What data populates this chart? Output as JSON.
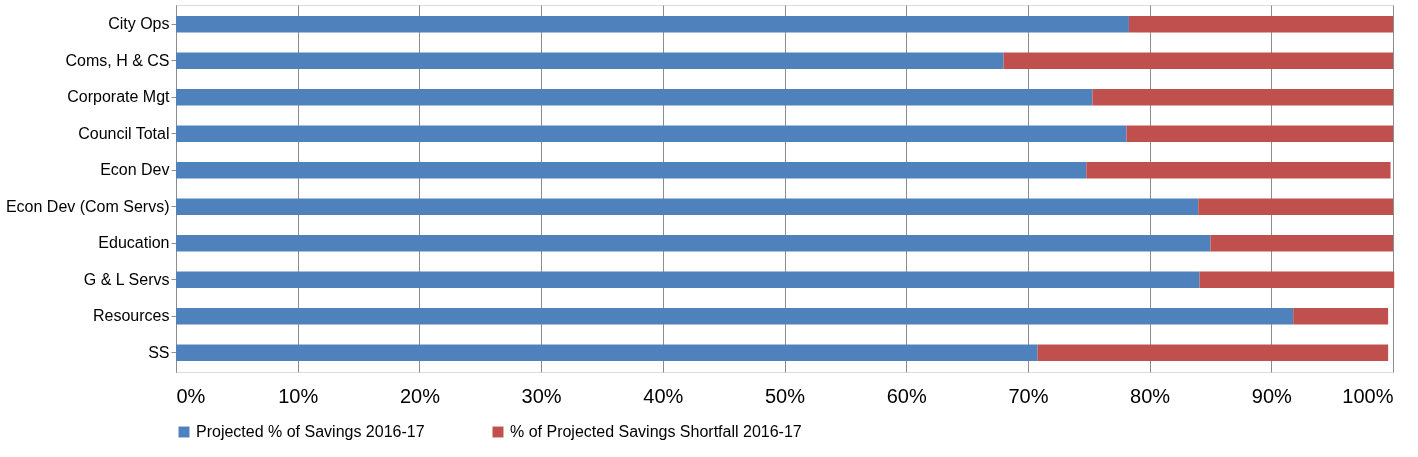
{
  "chart_data": {
    "type": "bar",
    "orientation": "horizontal",
    "stacked": true,
    "categories": [
      "City Ops",
      "Coms, H & CS",
      "Corporate Mgt",
      "Council Total",
      "Econ Dev",
      "Econ Dev (Com Servs)",
      "Education",
      "G & L Servs",
      "Resources",
      "SS"
    ],
    "series": [
      {
        "name": "Projected % of Savings  2016-17",
        "color": "#4f81bd",
        "values": [
          78.3,
          68.0,
          75.3,
          78.1,
          74.8,
          84.0,
          85.0,
          84.1,
          91.8,
          70.8
        ]
      },
      {
        "name": "% of Projected Savings Shortfall 2016-17",
        "color": "#c0504d",
        "values": [
          21.7,
          32.0,
          24.7,
          21.9,
          25.0,
          16.0,
          15.0,
          16.0,
          7.8,
          28.8
        ]
      }
    ],
    "xlim": [
      0,
      100
    ],
    "xticks": [
      {
        "value": 0,
        "label": "0%"
      },
      {
        "value": 10,
        "label": "10%"
      },
      {
        "value": 20,
        "label": "20%"
      },
      {
        "value": 30,
        "label": "30%"
      },
      {
        "value": 40,
        "label": "40%"
      },
      {
        "value": 50,
        "label": "50%"
      },
      {
        "value": 60,
        "label": "60%"
      },
      {
        "value": 70,
        "label": "70%"
      },
      {
        "value": 80,
        "label": "80%"
      },
      {
        "value": 90,
        "label": "90%"
      },
      {
        "value": 100,
        "label": "100%"
      }
    ],
    "grid": "x",
    "legend": "bottom"
  }
}
